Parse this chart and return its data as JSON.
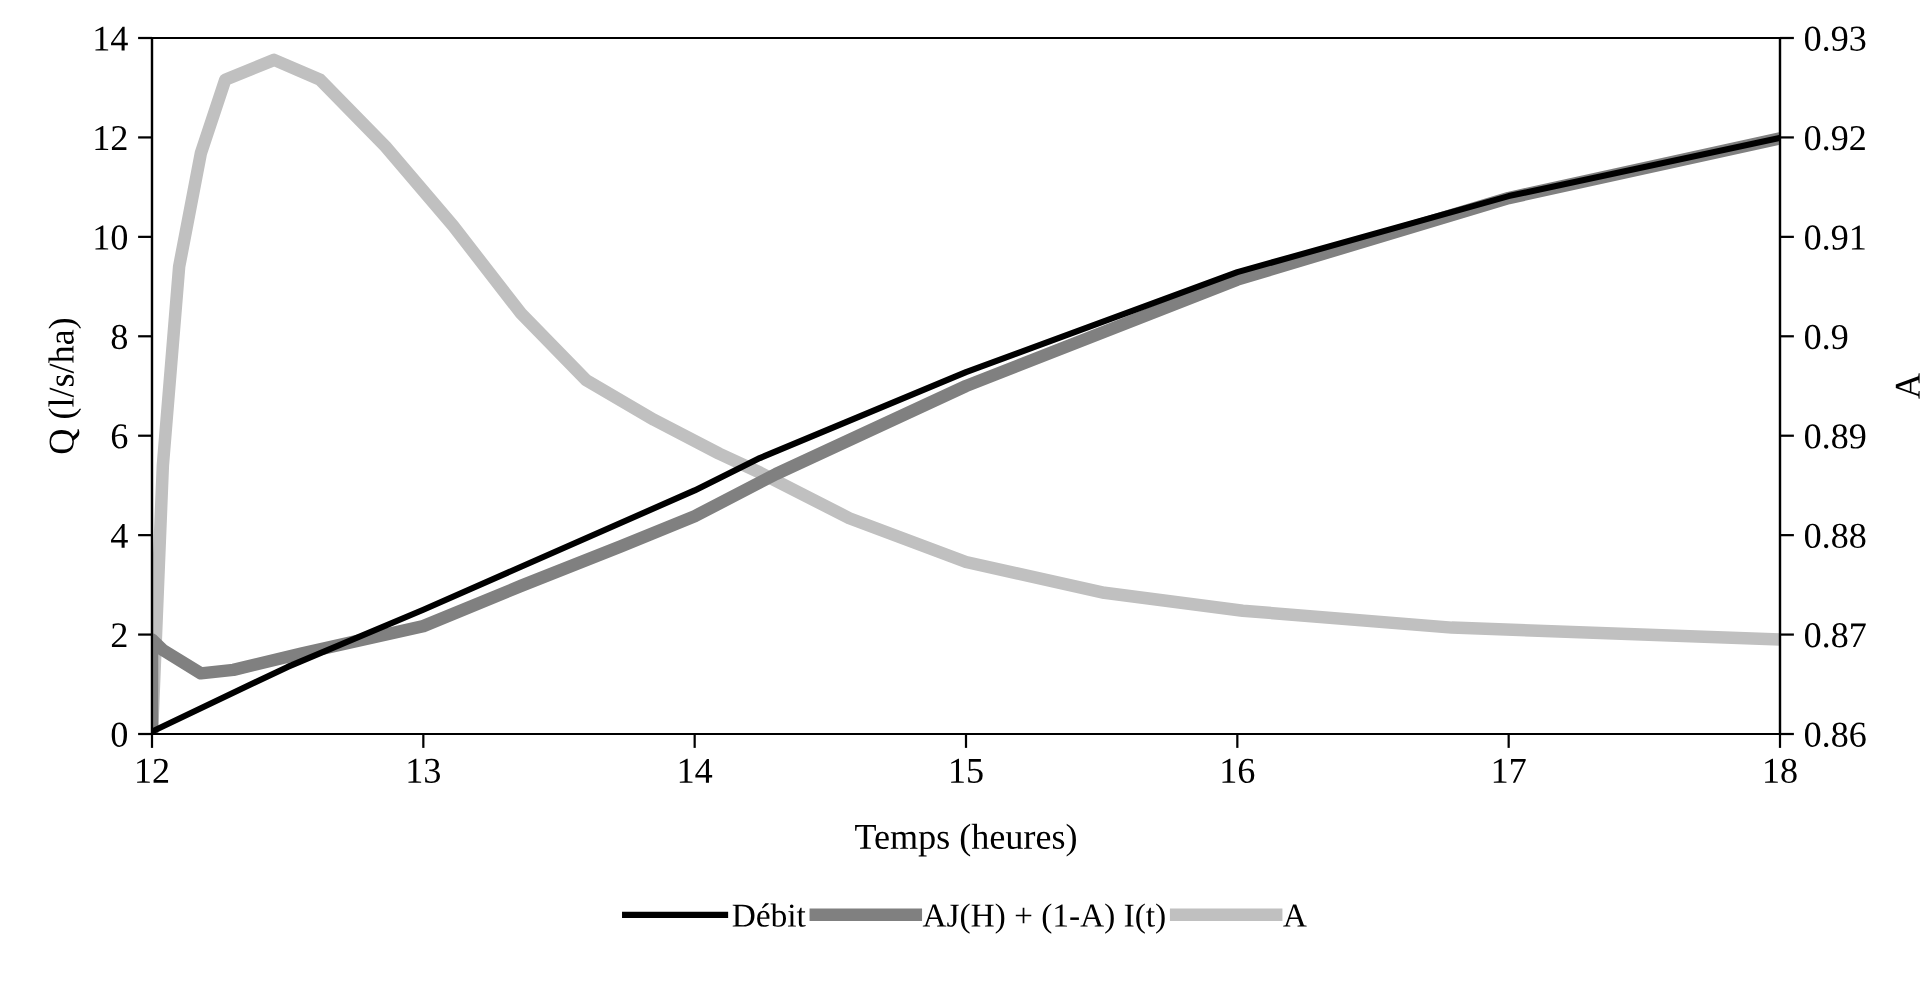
{
  "chart_data": {
    "type": "line",
    "xlabel": "Temps (heures)",
    "ylabel": "Q (l/s/ha)",
    "y2label": "A",
    "xlim": [
      12,
      18
    ],
    "xticks": [
      12,
      13,
      14,
      15,
      16,
      17,
      18
    ],
    "ylim": [
      0,
      14
    ],
    "yticks": [
      0,
      2,
      4,
      6,
      8,
      10,
      12,
      14
    ],
    "y2lim": [
      0.86,
      0.93
    ],
    "y2ticks": [
      {
        "value": 0.86,
        "label": "0.86"
      },
      {
        "value": 0.87,
        "label": "0.87"
      },
      {
        "value": 0.88,
        "label": "0.88"
      },
      {
        "value": 0.89,
        "label": "0.89"
      },
      {
        "value": 0.9,
        "label": "0.9"
      },
      {
        "value": 0.91,
        "label": "0.91"
      },
      {
        "value": 0.92,
        "label": "0.92"
      },
      {
        "value": 0.93,
        "label": "0.93"
      }
    ],
    "grid": false,
    "legend": "bottom",
    "marker": "none",
    "line_style": "solid",
    "series": [
      {
        "name": "Débit",
        "color": "#000000",
        "x": [
          12,
          12.5,
          13,
          14,
          14.24,
          15,
          16,
          17,
          18
        ],
        "values": [
          0.05,
          1.35,
          2.5,
          4.9,
          5.55,
          7.28,
          9.29,
          10.82,
          11.99
        ]
      },
      {
        "name": "AJ(H) + (1-A) I(t)",
        "color": "#808080",
        "x": [
          12,
          12,
          12.04,
          12.18,
          12.3,
          12.55,
          13,
          13.36,
          13.73,
          14,
          14.3,
          15,
          16,
          17,
          18
        ],
        "values": [
          0,
          1.9,
          1.69,
          1.22,
          1.29,
          1.62,
          2.17,
          2.98,
          3.78,
          4.38,
          5.23,
          7.0,
          9.14,
          10.78,
          11.98
        ]
      },
      {
        "name": "A",
        "color": "#c0c0c0",
        "axis": "y2",
        "x": [
          12,
          12.04,
          12.1,
          12.18,
          12.27,
          12.45,
          12.62,
          12.86,
          13.11,
          13.36,
          13.6,
          13.85,
          14.09,
          14.24,
          14.57,
          15,
          15.51,
          16.02,
          16.79,
          18
        ],
        "values": [
          0.86,
          0.887,
          0.907,
          0.9184,
          0.9258,
          0.9278,
          0.9258,
          0.9191,
          0.9111,
          0.9023,
          0.8956,
          0.8916,
          0.8882,
          0.8863,
          0.8817,
          0.8773,
          0.8742,
          0.8724,
          0.8707,
          0.8695
        ]
      }
    ]
  }
}
